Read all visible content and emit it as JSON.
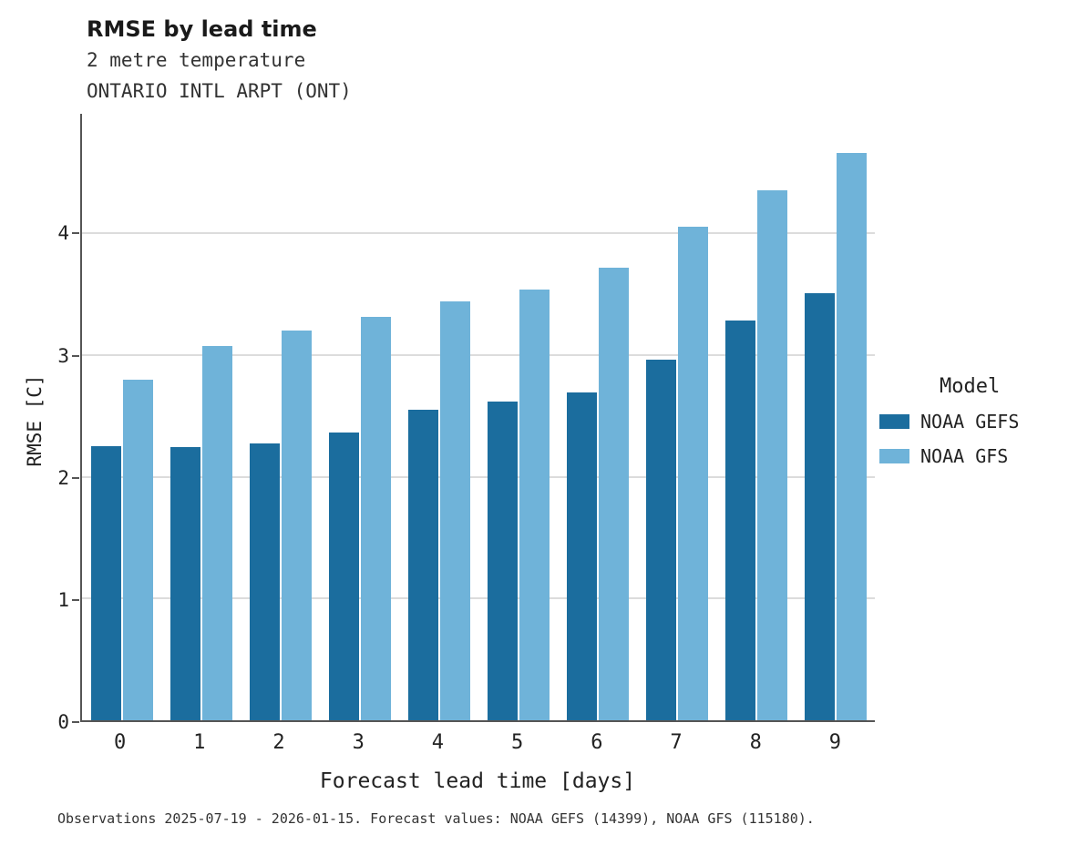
{
  "title": "RMSE by lead time",
  "subtitle_line1": "2 metre temperature",
  "subtitle_line2": "ONTARIO INTL ARPT (ONT)",
  "caption": "Observations 2025-07-19 - 2026-01-15. Forecast values: NOAA GEFS (14399), NOAA GFS (115180).",
  "colors": {
    "gefs": "#1b6d9e",
    "gfs": "#6fb3d9",
    "gridline": "#dcdcdc",
    "axis": "#555555"
  },
  "legend": {
    "title": "Model",
    "entries": [
      {
        "label": "NOAA GEFS",
        "color": "#1b6d9e"
      },
      {
        "label": "NOAA GFS",
        "color": "#6fb3d9"
      }
    ]
  },
  "chart_data": {
    "type": "bar",
    "title": "RMSE by lead time",
    "subtitle": "2 metre temperature — ONTARIO INTL ARPT (ONT)",
    "xlabel": "Forecast lead time [days]",
    "ylabel": "RMSE [C]",
    "categories": [
      "0",
      "1",
      "2",
      "3",
      "4",
      "5",
      "6",
      "7",
      "8",
      "9"
    ],
    "series": [
      {
        "name": "NOAA GEFS",
        "color": "#1b6d9e",
        "values": [
          2.25,
          2.24,
          2.27,
          2.36,
          2.55,
          2.62,
          2.69,
          2.96,
          3.28,
          3.51
        ]
      },
      {
        "name": "NOAA GFS",
        "color": "#6fb3d9",
        "values": [
          2.8,
          3.07,
          3.2,
          3.31,
          3.44,
          3.54,
          3.72,
          4.05,
          4.35,
          4.66
        ]
      }
    ],
    "ylim": [
      0,
      4.98
    ],
    "yticks": [
      0,
      1,
      2,
      3,
      4
    ],
    "grid": true,
    "legend_position": "right"
  }
}
